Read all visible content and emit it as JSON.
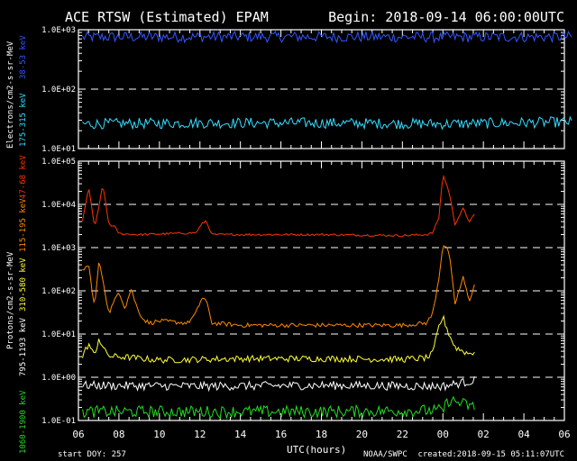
{
  "header": {
    "title": "ACE RTSW (Estimated) EPAM",
    "begin": "Begin: 2018-09-14 06:00:00UTC"
  },
  "footer": {
    "start_doy": "start DOY:  257",
    "xlabel": "UTC(hours)",
    "source": "NOAA/SWPC",
    "created": "created:2018-09-15 05:11:07UTC"
  },
  "colors": {
    "background": "#000000",
    "axes": "#ffffff",
    "e_38_53": "#3355ff",
    "e_175_315": "#33ddff",
    "p_47_68": "#ff3300",
    "p_115_195": "#ff8800",
    "p_310_580": "#ffff33",
    "p_795_1193": "#ffffff",
    "p_1060_1900": "#22dd22"
  },
  "chart_data": [
    {
      "type": "line",
      "panel": "electrons",
      "ylabel": "Electrons/cm2-s-sr-MeV",
      "yscale": "log",
      "ylim": [
        10,
        1000
      ],
      "yticks": [
        "1.0E+01",
        "1.0E+02",
        "1.0E+03"
      ],
      "xlim": [
        6,
        30
      ],
      "xticks": [
        "06",
        "08",
        "10",
        "12",
        "14",
        "16",
        "18",
        "20",
        "22",
        "00",
        "02",
        "04",
        "06"
      ],
      "grid": "dashed horizontal",
      "series": [
        {
          "name": "38-53 keV",
          "color": "#3355ff",
          "x": [
            6.2,
            12,
            18,
            24,
            30.4
          ],
          "values": [
            750,
            760,
            760,
            750,
            760
          ],
          "noise": 0.18
        },
        {
          "name": "175-315 keV",
          "color": "#33ddff",
          "x": [
            6.2,
            12,
            18,
            24,
            30.4
          ],
          "values": [
            26,
            27,
            27,
            26,
            28
          ],
          "noise": 0.18
        }
      ]
    },
    {
      "type": "line",
      "panel": "protons",
      "ylabel": "Protons/cm2-s-sr-MeV",
      "yscale": "log",
      "ylim": [
        0.1,
        100000
      ],
      "yticks": [
        "1.0E-01",
        "1.0E+00",
        "1.0E+01",
        "1.0E+02",
        "1.0E+03",
        "1.0E+04",
        "1.0E+05"
      ],
      "xlim": [
        6,
        30
      ],
      "xticks": [
        "06",
        "08",
        "10",
        "12",
        "14",
        "16",
        "18",
        "20",
        "22",
        "00",
        "02",
        "04",
        "06"
      ],
      "grid": "dashed horizontal",
      "series": [
        {
          "name": "47-68 keV",
          "color": "#ff3300",
          "x": [
            6.2,
            6.5,
            6.8,
            7.0,
            7.2,
            7.5,
            7.8,
            8.0,
            9.0,
            11.8,
            12.1,
            12.3,
            12.6,
            14,
            18,
            22,
            23.2,
            23.5,
            23.8,
            24.0,
            24.3,
            24.6,
            25.0,
            25.3,
            25.6
          ],
          "values": [
            4000,
            25000,
            3000,
            8000,
            30000,
            3500,
            3000,
            2100,
            2000,
            2200,
            3500,
            4200,
            2000,
            2000,
            2000,
            1900,
            2000,
            2200,
            5000,
            50000,
            20000,
            3500,
            8000,
            4000,
            6000
          ],
          "noise": 0.05
        },
        {
          "name": "115-195 keV",
          "color": "#ff8800",
          "x": [
            6.2,
            6.5,
            6.8,
            7.0,
            7.2,
            7.5,
            7.8,
            8.0,
            8.3,
            8.6,
            8.9,
            9.2,
            9.5,
            10,
            11.4,
            11.8,
            12.1,
            12.3,
            12.6,
            14,
            18,
            22,
            23.2,
            23.5,
            23.8,
            24.0,
            24.3,
            24.6,
            25.0,
            25.3,
            25.6
          ],
          "values": [
            300,
            400,
            40,
            450,
            200,
            30,
            60,
            100,
            40,
            110,
            40,
            22,
            18,
            20,
            18,
            30,
            70,
            60,
            18,
            16,
            16,
            16,
            18,
            30,
            200,
            1200,
            800,
            50,
            200,
            60,
            150
          ],
          "noise": 0.1
        },
        {
          "name": "310-580 keV",
          "color": "#ffff33",
          "x": [
            6.2,
            6.5,
            6.8,
            7.0,
            7.3,
            7.6,
            8.0,
            10,
            14,
            18,
            22,
            23.2,
            23.5,
            23.8,
            24.0,
            24.3,
            24.6,
            25.0,
            25.3,
            25.6
          ],
          "values": [
            3,
            6,
            3,
            8,
            4,
            3,
            3,
            2.5,
            2.7,
            2.7,
            2.6,
            2.8,
            3.5,
            15,
            25,
            10,
            5,
            4,
            3.5,
            4
          ],
          "noise": 0.15
        },
        {
          "name": "795-1193 keV",
          "color": "#ffffff",
          "x": [
            6.2,
            12,
            18,
            24,
            25.6
          ],
          "values": [
            0.65,
            0.62,
            0.65,
            0.62,
            0.85
          ],
          "noise": 0.2
        },
        {
          "name": "1060-1900 keV",
          "color": "#22dd22",
          "x": [
            6.2,
            12,
            18,
            24,
            24.3,
            25.6
          ],
          "values": [
            0.16,
            0.16,
            0.16,
            0.17,
            0.3,
            0.2
          ],
          "noise": 0.28
        }
      ]
    }
  ],
  "labels": {
    "e_38_53": "38-53 keV",
    "e_175_315": "175-315 keV",
    "p_47_68": "47-68 keV",
    "p_115_195": "115-195 keV",
    "p_310_580": "310-580 keV",
    "p_795_1193": "795-1193 keV",
    "p_1060_1900": "1060-1900 keV"
  }
}
